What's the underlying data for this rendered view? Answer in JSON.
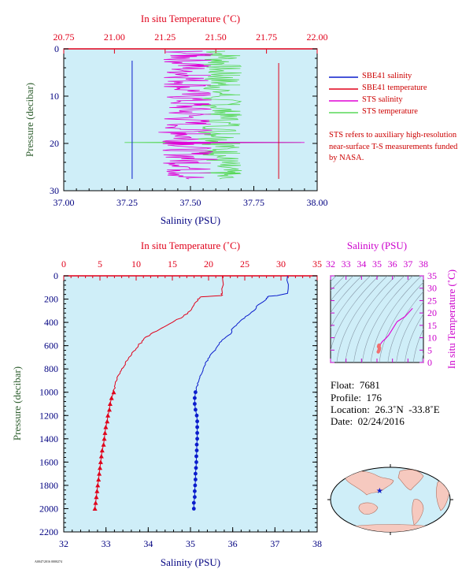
{
  "colors": {
    "plot_bg": "#cfeef8",
    "temperature": "#e0001a",
    "salinity": "#0a1ccc",
    "sts_salinity": "#e000d6",
    "sts_temperature": "#58d858",
    "ts_axis": "#cc00cc",
    "ylabel": "#2e5e2e",
    "axis_text": "#000080"
  },
  "info": {
    "float": "Float:  7681",
    "profile": "Profile:  176",
    "location": "Location:  26.3˚N  -33.8˚E",
    "date": "Date:  02/24/2016"
  },
  "legend": {
    "items": [
      {
        "label": "SBE41 salinity",
        "color": "#0a1ccc"
      },
      {
        "label": "SBE41 temperature",
        "color": "#e0001a"
      },
      {
        "label": "STS salinity",
        "color": "#e000d6"
      },
      {
        "label": "STS temperature",
        "color": "#58d858"
      }
    ]
  },
  "note": "STS refers to auxiliary high-resolution near-surface T-S measurements funded by NASA.",
  "footer_code": "A0047/2016 0000274",
  "chart_data": [
    {
      "type": "line",
      "id": "near-surface",
      "top_axis_label": "In situ Temperature (˚C)",
      "top_ticks": [
        20.75,
        21.0,
        21.25,
        21.5,
        21.75,
        22.0
      ],
      "top_tick_labels": [
        "20.75",
        "21.00",
        "21.25",
        "21.50",
        "21.75",
        "22.00"
      ],
      "top_lim": [
        20.75,
        22.0
      ],
      "xlabel": "Salinity (PSU)",
      "x_ticks": [
        37.0,
        37.25,
        37.5,
        37.75,
        38.0
      ],
      "x_tick_labels": [
        "37.00",
        "37.25",
        "37.50",
        "37.75",
        "38.00"
      ],
      "xlim": [
        37.0,
        38.0
      ],
      "ylabel": "Pressure (decibar)",
      "y_ticks": [
        0,
        10,
        20,
        30
      ],
      "y_tick_labels": [
        "0",
        "10",
        "20",
        "30"
      ],
      "ylim": [
        30,
        0
      ],
      "series": [
        {
          "name": "SBE41 salinity",
          "axis": "bottom",
          "points": [
            [
              37.27,
              2.5
            ],
            [
              37.27,
              10
            ],
            [
              37.27,
              20
            ],
            [
              37.27,
              27.5
            ]
          ]
        },
        {
          "name": "SBE41 temperature",
          "axis": "top",
          "points": [
            [
              21.81,
              3
            ],
            [
              21.81,
              10
            ],
            [
              21.81,
              20
            ],
            [
              21.81,
              27.5
            ]
          ]
        },
        {
          "name": "STS salinity",
          "axis": "bottom",
          "center": 37.49,
          "spread": 0.1,
          "p_range": [
            0.5,
            27.5
          ],
          "spike": {
            "p": 19.8,
            "range": [
              37.4,
              37.95
            ]
          }
        },
        {
          "name": "STS temperature",
          "axis": "top",
          "center": 21.53,
          "spread": 0.1,
          "p_range": [
            0.5,
            27.5
          ],
          "spike": {
            "p": 19.8,
            "range": [
              21.05,
              21.92
            ]
          }
        }
      ]
    },
    {
      "type": "line",
      "id": "full-profile",
      "top_axis_label": "In situ Temperature (˚C)",
      "top_ticks": [
        0,
        5,
        10,
        15,
        20,
        25,
        30,
        35
      ],
      "top_tick_labels": [
        "0",
        "5",
        "10",
        "15",
        "20",
        "25",
        "30",
        "35"
      ],
      "top_lim": [
        0,
        35
      ],
      "xlabel": "Salinity (PSU)",
      "x_ticks": [
        32,
        33,
        34,
        35,
        36,
        37,
        38
      ],
      "x_tick_labels": [
        "32",
        "33",
        "34",
        "35",
        "36",
        "37",
        "38"
      ],
      "xlim": [
        32,
        38
      ],
      "ylabel": "Pressure (decibar)",
      "y_ticks": [
        0,
        200,
        400,
        600,
        800,
        1000,
        1200,
        1400,
        1600,
        1800,
        2000,
        2200
      ],
      "y_tick_labels": [
        "0",
        "200",
        "400",
        "600",
        "800",
        "1000",
        "1200",
        "1400",
        "1600",
        "1800",
        "2000",
        "2200"
      ],
      "ylim": [
        2200,
        0
      ],
      "series": [
        {
          "name": "SBE41 temperature",
          "axis": "top",
          "profile": [
            [
              21.9,
              0
            ],
            [
              21.9,
              150
            ],
            [
              21.8,
              170
            ],
            [
              19.0,
              180
            ],
            [
              18.5,
              200
            ],
            [
              18.0,
              250
            ],
            [
              17.5,
              300
            ],
            [
              16.5,
              350
            ],
            [
              15.0,
              400
            ],
            [
              13.5,
              450
            ],
            [
              12.0,
              500
            ],
            [
              11.0,
              550
            ],
            [
              10.3,
              600
            ],
            [
              9.6,
              650
            ],
            [
              9.0,
              700
            ],
            [
              8.5,
              750
            ],
            [
              8.0,
              800
            ],
            [
              7.6,
              850
            ],
            [
              7.3,
              900
            ],
            [
              7.0,
              950
            ],
            [
              6.9,
              1000
            ]
          ],
          "markers": [
            [
              6.9,
              1000
            ],
            [
              6.6,
              1050
            ],
            [
              6.4,
              1100
            ],
            [
              6.3,
              1150
            ],
            [
              6.1,
              1200
            ],
            [
              6.0,
              1250
            ],
            [
              5.8,
              1300
            ],
            [
              5.7,
              1350
            ],
            [
              5.6,
              1400
            ],
            [
              5.5,
              1450
            ],
            [
              5.3,
              1500
            ],
            [
              5.2,
              1550
            ],
            [
              5.1,
              1600
            ],
            [
              5.0,
              1650
            ],
            [
              4.9,
              1700
            ],
            [
              4.8,
              1750
            ],
            [
              4.7,
              1800
            ],
            [
              4.6,
              1850
            ],
            [
              4.5,
              1900
            ],
            [
              4.4,
              1950
            ],
            [
              4.3,
              2000
            ]
          ]
        },
        {
          "name": "SBE41 salinity",
          "axis": "bottom",
          "profile": [
            [
              37.3,
              0
            ],
            [
              37.3,
              150
            ],
            [
              37.05,
              170
            ],
            [
              36.85,
              175
            ],
            [
              36.8,
              200
            ],
            [
              36.6,
              250
            ],
            [
              36.5,
              300
            ],
            [
              36.3,
              350
            ],
            [
              36.15,
              400
            ],
            [
              36.0,
              450
            ],
            [
              35.95,
              500
            ],
            [
              35.75,
              550
            ],
            [
              35.65,
              600
            ],
            [
              35.55,
              650
            ],
            [
              35.45,
              700
            ],
            [
              35.35,
              750
            ],
            [
              35.3,
              800
            ],
            [
              35.25,
              850
            ],
            [
              35.2,
              900
            ],
            [
              35.15,
              950
            ],
            [
              35.12,
              1000
            ]
          ],
          "markers": [
            [
              35.12,
              1000
            ],
            [
              35.1,
              1050
            ],
            [
              35.1,
              1100
            ],
            [
              35.12,
              1150
            ],
            [
              35.15,
              1200
            ],
            [
              35.16,
              1250
            ],
            [
              35.16,
              1300
            ],
            [
              35.16,
              1350
            ],
            [
              35.16,
              1400
            ],
            [
              35.15,
              1450
            ],
            [
              35.15,
              1500
            ],
            [
              35.14,
              1550
            ],
            [
              35.14,
              1600
            ],
            [
              35.13,
              1650
            ],
            [
              35.12,
              1700
            ],
            [
              35.12,
              1750
            ],
            [
              35.11,
              1800
            ],
            [
              35.1,
              1850
            ],
            [
              35.1,
              1900
            ],
            [
              35.08,
              1950
            ],
            [
              35.08,
              2000
            ]
          ]
        }
      ]
    },
    {
      "type": "scatter",
      "id": "ts-diagram",
      "top_axis_label": "Salinity (PSU)",
      "x_ticks": [
        32,
        33,
        34,
        35,
        36,
        37,
        38
      ],
      "x_tick_labels": [
        "32",
        "33",
        "34",
        "35",
        "36",
        "37",
        "38"
      ],
      "xlim": [
        32,
        38
      ],
      "right_axis_label": "In situ Temperature (˚C)",
      "y_ticks": [
        0,
        5,
        10,
        15,
        20,
        25,
        30,
        35
      ],
      "y_tick_labels": [
        "0",
        "5",
        "10",
        "15",
        "20",
        "25",
        "30",
        "35"
      ],
      "ylim": [
        0,
        35
      ],
      "density_contours": true,
      "series": [
        {
          "name": "T-S",
          "points": [
            [
              37.3,
              21.9
            ],
            [
              36.8,
              18.5
            ],
            [
              36.3,
              16.5
            ],
            [
              36.0,
              13.5
            ],
            [
              35.75,
              11.0
            ],
            [
              35.55,
              9.6
            ],
            [
              35.35,
              8.5
            ],
            [
              35.25,
              7.6
            ],
            [
              35.15,
              7.0
            ],
            [
              35.12,
              6.9
            ],
            [
              35.1,
              6.4
            ],
            [
              35.15,
              6.1
            ],
            [
              35.16,
              5.8
            ],
            [
              35.15,
              5.3
            ],
            [
              35.12,
              4.8
            ],
            [
              35.08,
              4.3
            ]
          ]
        }
      ]
    },
    {
      "type": "map",
      "id": "location-map",
      "marker": {
        "lat": 26.3,
        "lon": -33.8
      }
    }
  ]
}
